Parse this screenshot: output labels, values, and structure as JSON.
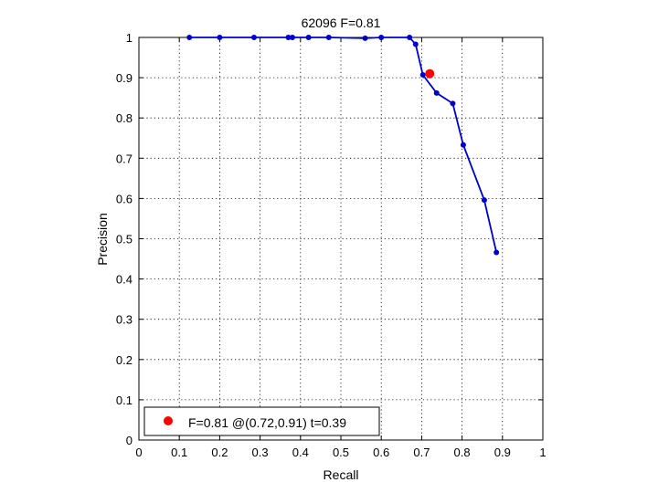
{
  "chart_data": {
    "type": "line",
    "title": "62096 F=0.81",
    "xlabel": "Recall",
    "ylabel": "Precision",
    "xlim": [
      0,
      1
    ],
    "ylim": [
      0,
      1
    ],
    "xticks": [
      "0",
      "0.1",
      "0.2",
      "0.3",
      "0.4",
      "0.5",
      "0.6",
      "0.7",
      "0.8",
      "0.9",
      "1"
    ],
    "yticks": [
      "0",
      "0.1",
      "0.2",
      "0.3",
      "0.4",
      "0.5",
      "0.6",
      "0.7",
      "0.8",
      "0.9",
      "1"
    ],
    "grid": true,
    "series": [
      {
        "color": "#0000cc",
        "x": [
          0.125,
          0.2,
          0.285,
          0.37,
          0.38,
          0.42,
          0.47,
          0.56,
          0.6,
          0.67,
          0.685,
          0.703,
          0.737,
          0.777,
          0.803,
          0.855,
          0.885
        ],
        "y": [
          1.0,
          1.0,
          1.0,
          1.0,
          1.0,
          1.0,
          1.0,
          0.998,
          1.0,
          1.0,
          0.983,
          0.907,
          0.862,
          0.836,
          0.733,
          0.596,
          0.466
        ]
      }
    ],
    "best_point": {
      "x": 0.72,
      "y": 0.91,
      "color": "#ff0000"
    },
    "legend": {
      "position": "bottom-left",
      "label": "F=0.81 @(0.72,0.91) t=0.39"
    }
  }
}
